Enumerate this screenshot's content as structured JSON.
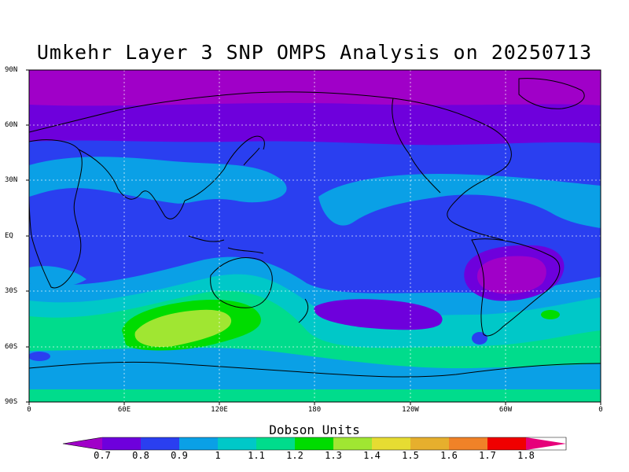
{
  "title": "Umkehr Layer 3 SNP OMPS Analysis on 20250713",
  "y_axis_labels": [
    "90N",
    "60N",
    "30N",
    "EQ",
    "30S",
    "60S",
    "90S"
  ],
  "x_axis_labels": [
    "0",
    "60E",
    "120E",
    "180",
    "120W",
    "60W",
    "0"
  ],
  "colorbar": {
    "title": "Dobson Units",
    "labels": [
      "0.7",
      "0.8",
      "0.9",
      "1",
      "1.1",
      "1.2",
      "1.3",
      "1.4",
      "1.5",
      "1.6",
      "1.7",
      "1.8"
    ],
    "colors": [
      "#a000c8",
      "#6e00dc",
      "#2a3ff0",
      "#0aa0e6",
      "#00c8c8",
      "#00dc8c",
      "#00dc00",
      "#a0e632",
      "#e6dc32",
      "#e6af2d",
      "#f08228",
      "#f00000",
      "#e6007a"
    ]
  },
  "map_colors": {
    "band_0.7": "#a000c8",
    "band_0.8": "#6e00dc",
    "band_0.9": "#2a3ff0",
    "band_1.0": "#0aa0e6",
    "band_1.1": "#00c8c8",
    "band_1.2": "#00dc8c",
    "band_1.4": "#a0e632",
    "coastline": "#000000",
    "grid": "#ffffff"
  }
}
